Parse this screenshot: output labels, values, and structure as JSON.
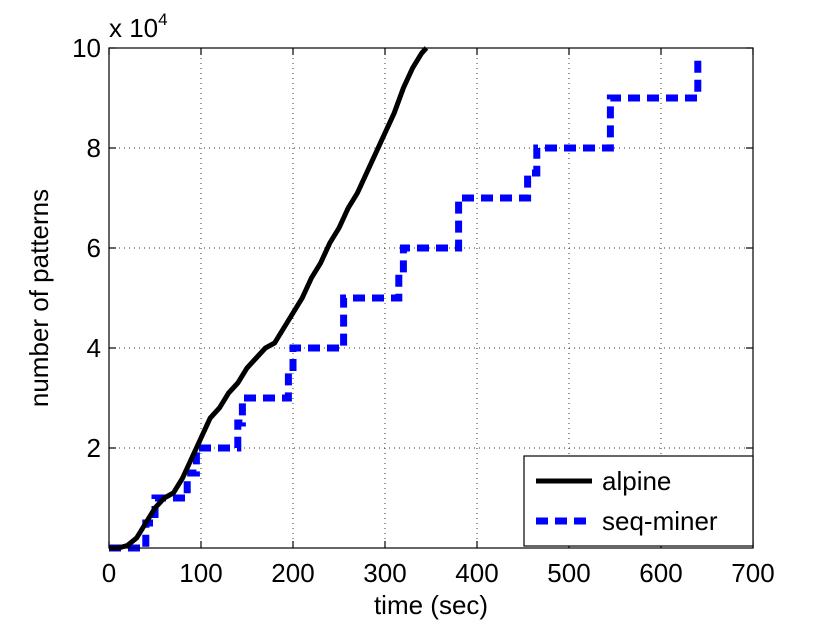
{
  "chart_data": {
    "type": "line",
    "xlabel": "time (sec)",
    "ylabel": "number of patterns",
    "xlim": [
      0,
      700
    ],
    "ylim": [
      0,
      10
    ],
    "xticks": [
      "0",
      "100",
      "200",
      "300",
      "400",
      "500",
      "600",
      "700"
    ],
    "yticks": [
      "2",
      "4",
      "6",
      "8",
      "10"
    ],
    "y_multiplier": {
      "base": "x 10",
      "exponent": "4"
    },
    "grid": true,
    "legend_position": "bottom-right",
    "series": [
      {
        "name": "alpine",
        "color": "#000000",
        "style": "solid",
        "x": [
          0,
          10,
          20,
          30,
          40,
          50,
          60,
          70,
          80,
          90,
          100,
          110,
          120,
          130,
          140,
          150,
          160,
          170,
          180,
          190,
          200,
          210,
          220,
          230,
          240,
          250,
          260,
          270,
          280,
          290,
          300,
          310,
          320,
          330,
          340,
          345
        ],
        "y": [
          0,
          0,
          0.05,
          0.2,
          0.5,
          0.8,
          1.0,
          1.1,
          1.4,
          1.8,
          2.2,
          2.6,
          2.8,
          3.1,
          3.3,
          3.6,
          3.8,
          4.0,
          4.1,
          4.4,
          4.7,
          5.0,
          5.4,
          5.7,
          6.1,
          6.4,
          6.8,
          7.1,
          7.5,
          7.9,
          8.3,
          8.7,
          9.2,
          9.6,
          9.9,
          10.0
        ]
      },
      {
        "name": "seq-miner",
        "color": "#0000ff",
        "style": "dashed",
        "x": [
          0,
          40,
          40,
          50,
          50,
          85,
          85,
          95,
          95,
          140,
          140,
          145,
          145,
          195,
          195,
          200,
          200,
          255,
          255,
          315,
          315,
          320,
          320,
          380,
          380,
          455,
          455,
          465,
          465,
          545,
          545,
          640,
          640
        ],
        "y": [
          0,
          0,
          0.5,
          0.5,
          1.0,
          1.0,
          1.5,
          1.5,
          2.0,
          2.0,
          2.5,
          2.5,
          3.0,
          3.0,
          3.5,
          3.5,
          4.0,
          4.0,
          5.0,
          5.0,
          5.5,
          5.5,
          6.0,
          6.0,
          7.0,
          7.0,
          7.5,
          7.5,
          8.0,
          8.0,
          9.0,
          9.0,
          9.8
        ]
      }
    ]
  }
}
